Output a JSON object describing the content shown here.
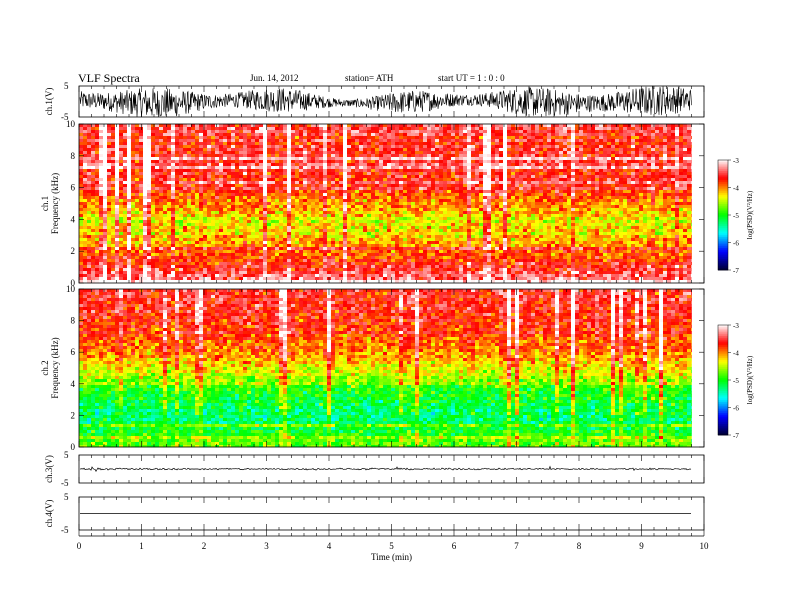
{
  "header": {
    "title": "VLF  Spectra",
    "date": "Jun. 14, 2012",
    "station": "station= ATH",
    "start": "start  UT  =   1  : 0  : 0"
  },
  "colors": {
    "colormap": [
      "#000033",
      "#0000ff",
      "#00ffff",
      "#00ff00",
      "#ffff00",
      "#ff0000",
      "#ffffff"
    ],
    "trace": "#000000"
  },
  "chart_data": [
    {
      "type": "line",
      "panel": "ch1-waveform",
      "ylabel": "ch.1(V)",
      "ylim": [
        -5,
        5
      ],
      "yticks": [
        "5",
        "-5"
      ],
      "description_values": {
        "x_range_min": [
          0,
          9.8
        ],
        "amplitude_typical": [
          -4.5,
          4.5
        ]
      }
    },
    {
      "type": "heatmap",
      "panel": "ch1-spectrogram",
      "ylabel_top": "ch.1",
      "ylabel": "Frequency  (kHz)",
      "ylim": [
        0,
        10
      ],
      "yticks": [
        "0",
        "2",
        "4",
        "6",
        "8",
        "10"
      ],
      "x_range_min": [
        0,
        9.8
      ],
      "colorbar": {
        "label": "log(PSD)(V²/Hz)",
        "range": [
          -7,
          -3
        ],
        "ticks": [
          "-3",
          "-4",
          "-5",
          "-6",
          "-7"
        ]
      },
      "dominant_logpsd_by_frequency_khz": [
        {
          "f": 0.5,
          "v": -3.4
        },
        {
          "f": 1.5,
          "v": -3.8
        },
        {
          "f": 2.5,
          "v": -4.1
        },
        {
          "f": 3.5,
          "v": -4.3
        },
        {
          "f": 4.5,
          "v": -4.2
        },
        {
          "f": 6,
          "v": -3.7
        },
        {
          "f": 8,
          "v": -3.6
        },
        {
          "f": 9.5,
          "v": -3.5
        }
      ]
    },
    {
      "type": "heatmap",
      "panel": "ch2-spectrogram",
      "ylabel_top": "ch.2",
      "ylabel": "Frequency  (kHz)",
      "ylim": [
        0,
        10
      ],
      "yticks": [
        "0",
        "2",
        "4",
        "6",
        "8",
        "10"
      ],
      "x_range_min": [
        0,
        9.8
      ],
      "colorbar": {
        "label": "log(PSD)(V²/Hz)",
        "range": [
          -7,
          -3
        ],
        "ticks": [
          "-3",
          "-4",
          "-5",
          "-6",
          "-7"
        ]
      },
      "dominant_logpsd_by_frequency_khz": [
        {
          "f": 0.5,
          "v": -4.8
        },
        {
          "f": 1.5,
          "v": -5.3
        },
        {
          "f": 2.5,
          "v": -5.2
        },
        {
          "f": 3.5,
          "v": -5.0
        },
        {
          "f": 4.5,
          "v": -4.5
        },
        {
          "f": 6,
          "v": -4.0
        },
        {
          "f": 8,
          "v": -3.7
        },
        {
          "f": 9.5,
          "v": -3.6
        }
      ]
    },
    {
      "type": "line",
      "panel": "ch3-waveform",
      "ylabel": "ch.3(V)",
      "ylim": [
        -5,
        5
      ],
      "yticks": [
        "5",
        "-5"
      ],
      "level_v": 0
    },
    {
      "type": "line",
      "panel": "ch4-waveform",
      "ylabel": "ch.4(V)",
      "ylim": [
        -5,
        5
      ],
      "yticks": [
        "5",
        "-5"
      ],
      "level_v": 0
    },
    {
      "type": "axis",
      "panel": "time-axis",
      "xlabel": "Time  (min)",
      "xlim": [
        0,
        10
      ],
      "xticks": [
        "0",
        "1",
        "2",
        "3",
        "4",
        "5",
        "6",
        "7",
        "8",
        "9",
        "10"
      ],
      "data_end_min": 9.8
    }
  ]
}
